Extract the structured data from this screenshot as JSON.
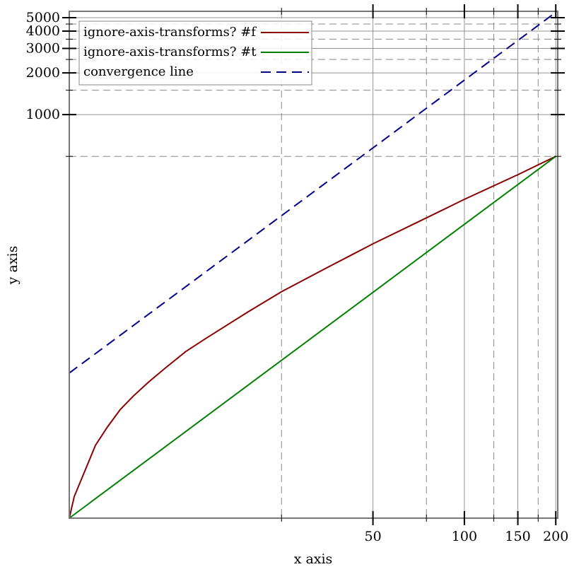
{
  "chart_data": {
    "type": "line",
    "title": "",
    "xlabel": "x axis",
    "ylabel": "y axis",
    "x_scale": "log",
    "y_scale": "log",
    "xlim": [
      5,
      203
    ],
    "ylim": [
      1.23,
      5560
    ],
    "grid": true,
    "legend_position": "top-left",
    "x_major_ticks": [
      {
        "value": 50,
        "label": "50"
      },
      {
        "value": 100,
        "label": "100"
      },
      {
        "value": 150,
        "label": "150"
      },
      {
        "value": 200,
        "label": "200"
      }
    ],
    "x_minor_ticks": [
      25,
      75,
      125,
      175
    ],
    "y_major_ticks": [
      {
        "value": 1000,
        "label": "1000"
      },
      {
        "value": 2000,
        "label": "2000"
      },
      {
        "value": 3000,
        "label": "3000"
      },
      {
        "value": 4000,
        "label": "4000"
      },
      {
        "value": 5000,
        "label": "5000"
      }
    ],
    "y_minor_ticks": [
      500,
      1500,
      2500,
      3500,
      4500
    ],
    "series": [
      {
        "name": "ignore-axis-transforms? #f",
        "color": "#8b0000",
        "style": "solid",
        "x": [
          5,
          5.19,
          5.56,
          6.1,
          6.68,
          7.36,
          8.11,
          9.13,
          10.44,
          12.07,
          14.03,
          16.48,
          19.36,
          25,
          35,
          50,
          74.2,
          100,
          150,
          200
        ],
        "y": [
          1.23,
          1.76,
          2.53,
          4.13,
          5.59,
          7.46,
          9.3,
          11.8,
          15.1,
          19.5,
          24.2,
          30.2,
          37.7,
          52.9,
          78,
          117,
          178,
          245,
          369,
          500
        ]
      },
      {
        "name": "ignore-axis-transforms? #t",
        "color": "#008000",
        "style": "solid",
        "x": [
          5,
          200
        ],
        "y": [
          1.23,
          500
        ]
      },
      {
        "name": "convergence line",
        "color": "#00008b",
        "style": "dashed",
        "x": [
          5,
          203
        ],
        "y": [
          13.7,
          5600
        ]
      }
    ]
  }
}
